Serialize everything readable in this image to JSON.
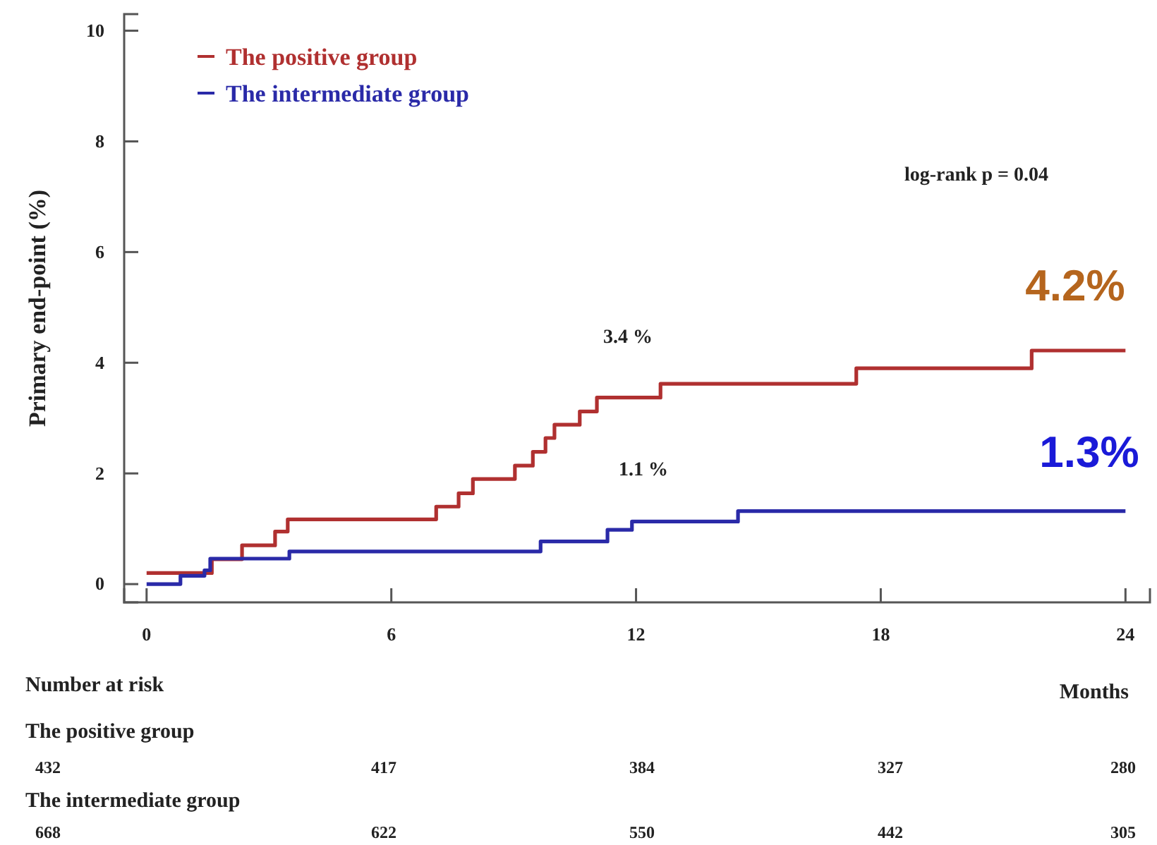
{
  "chart_data": {
    "type": "step",
    "xlabel": "Months",
    "ylabel": "Primary end-point (%)",
    "xlim": [
      -0.55,
      24.6
    ],
    "ylim": [
      -0.33,
      10.3
    ],
    "xticks": [
      0,
      6,
      12,
      18,
      24
    ],
    "yticks": [
      0,
      2,
      4,
      6,
      8,
      10
    ],
    "legend": "top left",
    "grid": false,
    "series": [
      {
        "name": "The positive group",
        "color": "#b03030",
        "x": [
          0,
          1.6,
          2.34,
          3.15,
          3.46,
          7.1,
          7.65,
          8.0,
          9.03,
          9.47,
          9.78,
          10.0,
          10.62,
          11.04,
          12.6,
          17.4,
          21.7,
          24
        ],
        "values": [
          0.2,
          0.45,
          0.7,
          0.95,
          1.17,
          1.4,
          1.64,
          1.9,
          2.14,
          2.39,
          2.64,
          2.88,
          3.12,
          3.37,
          3.62,
          3.9,
          4.22,
          4.22
        ]
      },
      {
        "name": "The intermediate group",
        "color": "#2a2aa8",
        "x": [
          0,
          0.83,
          1.42,
          1.56,
          3.5,
          9.66,
          11.3,
          11.9,
          14.5,
          24
        ],
        "values": [
          0,
          0.15,
          0.25,
          0.46,
          0.59,
          0.77,
          0.98,
          1.13,
          1.32,
          1.32
        ]
      }
    ],
    "annotations": [
      "log-rank p = 0.04",
      "3.4 %",
      "1.1 %",
      "4.2%",
      "1.3%",
      "Number at risk",
      "The positive group",
      "432",
      "417",
      "384",
      "327",
      "280",
      "The intermediate group",
      "668",
      "622",
      "550",
      "442",
      "305"
    ]
  }
}
